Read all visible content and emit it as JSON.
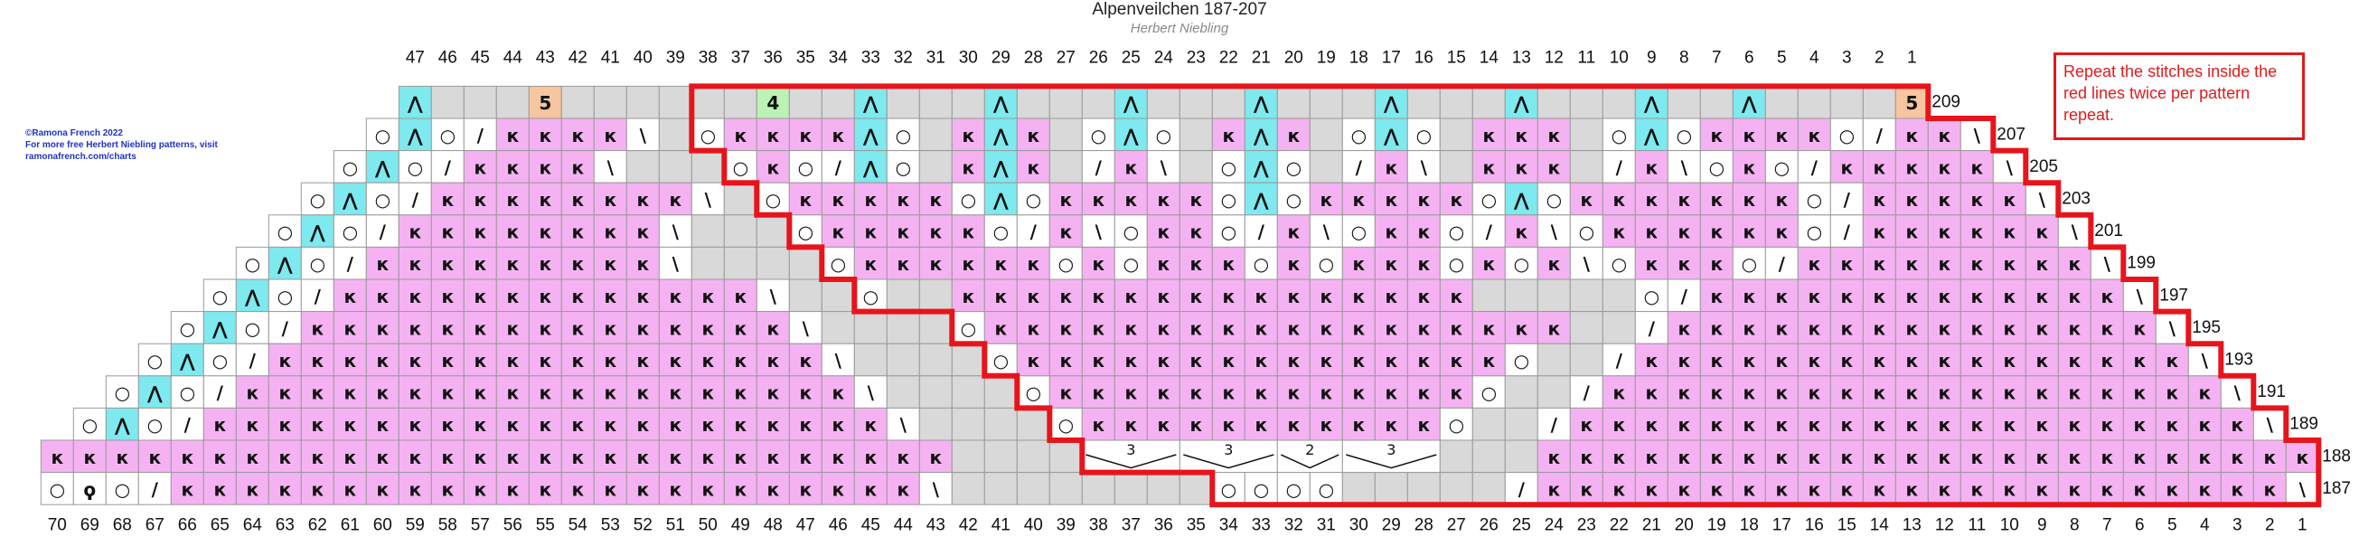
{
  "header": {
    "title": "Alpenveilchen 187-207",
    "subtitle": "Herbert Niebling"
  },
  "credit": [
    "©Ramona French 2022",
    "For more free Herbert Niebling patterns, visit",
    "ramonafrench.com/charts"
  ],
  "note": "Repeat the stitches inside the red lines twice per pattern repeat.",
  "cell_colors": {
    "к": "#f5b2f2",
    "⋀": "#7ee9ef",
    "5": "#f7c59f",
    "4": "#bdf2b5"
  },
  "no_stitch_color": "#d9d9d9",
  "column_numbers_top": {
    "first_column": 59,
    "values": [
      47,
      46,
      45,
      44,
      43,
      42,
      41,
      40,
      39,
      38,
      37,
      36,
      35,
      34,
      33,
      32,
      31,
      30,
      29,
      28,
      27,
      26,
      25,
      24,
      23,
      22,
      21,
      20,
      19,
      18,
      17,
      16,
      15,
      14,
      13,
      12,
      11,
      10,
      9,
      8,
      7,
      6,
      5,
      4,
      3,
      2,
      1
    ]
  },
  "column_numbers_bottom": [
    70,
    69,
    68,
    67,
    66,
    65,
    64,
    63,
    62,
    61,
    60,
    59,
    58,
    57,
    56,
    55,
    54,
    53,
    52,
    51,
    50,
    49,
    48,
    47,
    46,
    45,
    44,
    43,
    42,
    41,
    40,
    39,
    38,
    37,
    36,
    35,
    34,
    33,
    32,
    31,
    30,
    29,
    28,
    27,
    26,
    25,
    24,
    23,
    22,
    21,
    20,
    19,
    18,
    17,
    16,
    15,
    14,
    13,
    12,
    11,
    10,
    9,
    8,
    7,
    6,
    5,
    4,
    3,
    2,
    1
  ],
  "rows": [
    {
      "label": 209,
      "first_column": 59,
      "cells": [
        "⋀",
        null,
        null,
        null,
        "5",
        null,
        null,
        null,
        null,
        null,
        null,
        "4",
        null,
        null,
        "⋀",
        null,
        null,
        null,
        "⋀",
        null,
        null,
        null,
        "⋀",
        null,
        null,
        null,
        "⋀",
        null,
        null,
        null,
        "⋀",
        null,
        null,
        null,
        "⋀",
        null,
        null,
        null,
        "⋀",
        null,
        null,
        "⋀",
        null,
        null,
        null,
        null,
        "5"
      ]
    },
    {
      "label": 207,
      "first_column": 60,
      "cells": [
        "○",
        "⋀",
        "○",
        "/",
        "к",
        "к",
        "к",
        "к",
        "\\",
        null,
        "○",
        "к",
        "к",
        "к",
        "к",
        "⋀",
        "○",
        null,
        "к",
        "⋀",
        "к",
        null,
        "○",
        "⋀",
        "○",
        null,
        "к",
        "⋀",
        "к",
        null,
        "○",
        "⋀",
        "○",
        null,
        "к",
        "к",
        "к",
        null,
        "○",
        "⋀",
        "○",
        "к",
        "к",
        "к",
        "к",
        "○",
        "/",
        "к",
        "к",
        "\\"
      ]
    },
    {
      "label": 205,
      "first_column": 61,
      "cells": [
        "○",
        "⋀",
        "○",
        "/",
        "к",
        "к",
        "к",
        "к",
        "\\",
        null,
        null,
        null,
        "○",
        "к",
        "○",
        "/",
        "⋀",
        "○",
        null,
        "к",
        "⋀",
        "к",
        null,
        "/",
        "к",
        "\\",
        null,
        "○",
        "⋀",
        "○",
        null,
        "/",
        "к",
        "\\",
        null,
        "к",
        "к",
        "к",
        null,
        "/",
        "к",
        "\\",
        "○",
        "к",
        "○",
        "/",
        "к",
        "к",
        "к",
        "к",
        "к",
        "\\"
      ]
    },
    {
      "label": 203,
      "first_column": 62,
      "cells": [
        "○",
        "⋀",
        "○",
        "/",
        "к",
        "к",
        "к",
        "к",
        "к",
        "к",
        "к",
        "к",
        "\\",
        null,
        "○",
        "к",
        "к",
        "к",
        "к",
        "к",
        "○",
        "⋀",
        "○",
        "к",
        "к",
        "к",
        "к",
        "к",
        "○",
        "⋀",
        "○",
        "к",
        "к",
        "к",
        "к",
        "к",
        "○",
        "⋀",
        "○",
        "к",
        "к",
        "к",
        "к",
        "к",
        "к",
        "к",
        "○",
        "/",
        "к",
        "к",
        "к",
        "к",
        "к",
        "\\"
      ]
    },
    {
      "label": 201,
      "first_column": 63,
      "cells": [
        "○",
        "⋀",
        "○",
        "/",
        "к",
        "к",
        "к",
        "к",
        "к",
        "к",
        "к",
        "к",
        "\\",
        null,
        null,
        null,
        "○",
        "к",
        "к",
        "к",
        "к",
        "к",
        "○",
        "/",
        "к",
        "\\",
        "○",
        "к",
        "к",
        "○",
        "/",
        "к",
        "\\",
        "○",
        "к",
        "к",
        "○",
        "/",
        "к",
        "\\",
        "○",
        "к",
        "к",
        "к",
        "к",
        "к",
        "к",
        "○",
        "/",
        "к",
        "к",
        "к",
        "к",
        "к",
        "к",
        "\\"
      ]
    },
    {
      "label": 199,
      "first_column": 64,
      "cells": [
        "○",
        "⋀",
        "○",
        "/",
        "к",
        "к",
        "к",
        "к",
        "к",
        "к",
        "к",
        "к",
        "к",
        "\\",
        null,
        null,
        null,
        null,
        "○",
        "к",
        "к",
        "к",
        "к",
        "к",
        "к",
        "○",
        "к",
        "○",
        "к",
        "к",
        "к",
        "○",
        "к",
        "○",
        "к",
        "к",
        "к",
        "○",
        "к",
        "○",
        "к",
        "\\",
        "○",
        "к",
        "к",
        "к",
        "○",
        "/",
        "к",
        "к",
        "к",
        "к",
        "к",
        "к",
        "к",
        "к",
        "к",
        "\\"
      ]
    },
    {
      "label": 197,
      "first_column": 65,
      "cells": [
        "○",
        "⋀",
        "○",
        "/",
        "к",
        "к",
        "к",
        "к",
        "к",
        "к",
        "к",
        "к",
        "к",
        "к",
        "к",
        "к",
        "к",
        "\\",
        null,
        null,
        "○",
        null,
        null,
        "к",
        "к",
        "к",
        "к",
        "к",
        "к",
        "к",
        "к",
        "к",
        "к",
        "к",
        "к",
        "к",
        "к",
        "к",
        "к",
        null,
        null,
        null,
        null,
        null,
        "○",
        "/",
        "к",
        "к",
        "к",
        "к",
        "к",
        "к",
        "к",
        "к",
        "к",
        "к",
        "к",
        "к",
        "к",
        "\\"
      ]
    },
    {
      "label": 195,
      "first_column": 66,
      "cells": [
        "○",
        "⋀",
        "○",
        "/",
        "к",
        "к",
        "к",
        "к",
        "к",
        "к",
        "к",
        "к",
        "к",
        "к",
        "к",
        "к",
        "к",
        "к",
        "к",
        "\\",
        null,
        null,
        null,
        null,
        "○",
        "к",
        "к",
        "к",
        "к",
        "к",
        "к",
        "к",
        "к",
        "к",
        "к",
        "к",
        "к",
        "к",
        "к",
        "к",
        "к",
        "к",
        "к",
        null,
        null,
        "/",
        "к",
        "к",
        "к",
        "к",
        "к",
        "к",
        "к",
        "к",
        "к",
        "к",
        "к",
        "к",
        "к",
        "к",
        "к",
        "\\"
      ]
    },
    {
      "label": 193,
      "first_column": 67,
      "cells": [
        "○",
        "⋀",
        "○",
        "/",
        "к",
        "к",
        "к",
        "к",
        "к",
        "к",
        "к",
        "к",
        "к",
        "к",
        "к",
        "к",
        "к",
        "к",
        "к",
        "к",
        "к",
        "\\",
        null,
        null,
        null,
        null,
        "○",
        "к",
        "к",
        "к",
        "к",
        "к",
        "к",
        "к",
        "к",
        "к",
        "к",
        "к",
        "к",
        "к",
        "к",
        "к",
        "○",
        null,
        null,
        "/",
        "к",
        "к",
        "к",
        "к",
        "к",
        "к",
        "к",
        "к",
        "к",
        "к",
        "к",
        "к",
        "к",
        "к",
        "к",
        "к",
        "к",
        "\\"
      ]
    },
    {
      "label": 191,
      "first_column": 68,
      "cells": [
        "○",
        "⋀",
        "○",
        "/",
        "к",
        "к",
        "к",
        "к",
        "к",
        "к",
        "к",
        "к",
        "к",
        "к",
        "к",
        "к",
        "к",
        "к",
        "к",
        "к",
        "к",
        "к",
        "к",
        "\\",
        null,
        null,
        null,
        null,
        "○",
        "к",
        "к",
        "к",
        "к",
        "к",
        "к",
        "к",
        "к",
        "к",
        "к",
        "к",
        "к",
        "к",
        "○",
        null,
        null,
        "/",
        "к",
        "к",
        "к",
        "к",
        "к",
        "к",
        "к",
        "к",
        "к",
        "к",
        "к",
        "к",
        "к",
        "к",
        "к",
        "к",
        "к",
        "к",
        "к",
        "\\"
      ]
    },
    {
      "label": 189,
      "first_column": 69,
      "cells": [
        "○",
        "⋀",
        "○",
        "/",
        "к",
        "к",
        "к",
        "к",
        "к",
        "к",
        "к",
        "к",
        "к",
        "к",
        "к",
        "к",
        "к",
        "к",
        "к",
        "к",
        "к",
        "к",
        "к",
        "к",
        "к",
        "\\",
        null,
        null,
        null,
        null,
        "○",
        "к",
        "к",
        "к",
        "к",
        "к",
        "к",
        "к",
        "к",
        "к",
        "к",
        "к",
        "○",
        null,
        null,
        "/",
        "к",
        "к",
        "к",
        "к",
        "к",
        "к",
        "к",
        "к",
        "к",
        "к",
        "к",
        "к",
        "к",
        "к",
        "к",
        "к",
        "к",
        "к",
        "к",
        "к",
        "к",
        "\\"
      ]
    },
    {
      "label": 188,
      "first_column": 70,
      "cells": [
        "к",
        "к",
        "к",
        "к",
        "к",
        "к",
        "к",
        "к",
        "к",
        "к",
        "к",
        "к",
        "к",
        "к",
        "к",
        "к",
        "к",
        "к",
        "к",
        "к",
        "к",
        "к",
        "к",
        "к",
        "к",
        "к",
        "к",
        "к",
        null,
        null,
        null,
        null,
        {
          "label": "3",
          "span": 3
        },
        {
          "label": "3",
          "span": 3
        },
        {
          "label": "2",
          "span": 2
        },
        {
          "label": "3",
          "span": 3
        },
        null,
        null,
        null,
        "к",
        "к",
        "к",
        "к",
        "к",
        "к",
        "к",
        "к",
        "к",
        "к",
        "к",
        "к",
        "к",
        "к",
        "к",
        "к",
        "к",
        "к",
        "к",
        "к",
        "к",
        "к",
        "к",
        "к"
      ]
    },
    {
      "label": 187,
      "first_column": 70,
      "cells": [
        "○",
        "ϙ",
        "○",
        "/",
        "к",
        "к",
        "к",
        "к",
        "к",
        "к",
        "к",
        "к",
        "к",
        "к",
        "к",
        "к",
        "к",
        "к",
        "к",
        "к",
        "к",
        "к",
        "к",
        "к",
        "к",
        "к",
        "к",
        "\\",
        null,
        null,
        null,
        null,
        null,
        null,
        null,
        null,
        "○",
        "○",
        "○",
        "○",
        null,
        null,
        null,
        null,
        null,
        "/",
        "к",
        "к",
        "к",
        "к",
        "к",
        "к",
        "к",
        "к",
        "к",
        "к",
        "к",
        "к",
        "к",
        "к",
        "к",
        "к",
        "к",
        "к",
        "к",
        "к",
        "к",
        "к",
        "к",
        "\\"
      ]
    }
  ]
}
